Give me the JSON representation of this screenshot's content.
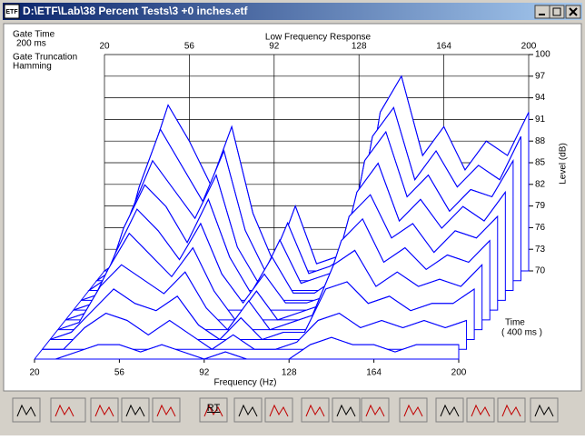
{
  "window": {
    "icon": "ETF",
    "title": "D:\\ETF\\Lab\\38 Percent Tests\\3 +0 inches.etf"
  },
  "toolbar": {
    "labels": [
      "RT"
    ]
  },
  "chart_data": {
    "type": "waterfall",
    "title": "Low Frequency Response",
    "x_label": "Frequency (Hz)",
    "y_label": "Level (dB)",
    "depth_label": "Time",
    "depth_range": "( 400 ms )",
    "annotations": [
      "Gate Time",
      "200 ms",
      "Gate Truncation",
      "Hamming"
    ],
    "color": "#0000ff",
    "grid": true,
    "xlim": [
      20,
      200
    ],
    "xticks": [
      20,
      56,
      92,
      128,
      164,
      200
    ],
    "ylim": [
      70,
      100
    ],
    "yticks": [
      70,
      73,
      76,
      79,
      82,
      85,
      88,
      91,
      94,
      97,
      100
    ],
    "x": [
      20,
      29,
      38,
      47,
      56,
      65,
      74,
      83,
      92,
      101,
      110,
      119,
      128,
      137,
      146,
      155,
      164,
      173,
      182,
      191,
      200
    ],
    "series": [
      {
        "values": [
          70,
          72,
          84,
          93,
          88,
          82,
          90,
          78,
          71,
          79,
          71,
          72,
          74,
          92,
          97,
          86,
          90,
          84,
          88,
          86,
          92
        ]
      },
      {
        "values": [
          70,
          72,
          83,
          91,
          86,
          81,
          88,
          77,
          71,
          78,
          71,
          72,
          74,
          90,
          94,
          84,
          88,
          83,
          86,
          84,
          90
        ]
      },
      {
        "values": [
          70,
          72,
          81,
          88,
          84,
          80,
          86,
          76,
          71,
          77,
          71,
          72,
          73,
          88,
          92,
          83,
          86,
          81,
          84,
          83,
          88
        ]
      },
      {
        "values": [
          70,
          71,
          80,
          86,
          83,
          78,
          84,
          76,
          71,
          76,
          71,
          71,
          73,
          85,
          89,
          81,
          84,
          80,
          83,
          81,
          85
        ]
      },
      {
        "values": [
          70,
          71,
          78,
          84,
          81,
          77,
          82,
          75,
          71,
          75,
          71,
          71,
          72,
          83,
          86,
          80,
          82,
          78,
          81,
          80,
          83
        ]
      },
      {
        "values": [
          70,
          71,
          77,
          82,
          79,
          76,
          80,
          74,
          70,
          74,
          70,
          71,
          72,
          81,
          84,
          78,
          80,
          77,
          79,
          78,
          81
        ]
      },
      {
        "values": [
          70,
          71,
          76,
          79,
          77,
          75,
          78,
          73,
          70,
          74,
          70,
          71,
          72,
          79,
          81,
          76,
          78,
          76,
          77,
          76,
          79
        ]
      },
      {
        "values": [
          70,
          71,
          74,
          77,
          75,
          74,
          76,
          72,
          70,
          73,
          70,
          71,
          71,
          77,
          78,
          75,
          76,
          74,
          75,
          75,
          77
        ]
      },
      {
        "values": [
          70,
          70,
          73,
          75,
          74,
          72,
          74,
          72,
          70,
          72,
          70,
          70,
          71,
          74,
          75,
          73,
          74,
          73,
          74,
          73,
          74
        ]
      },
      {
        "values": [
          70,
          70,
          71,
          72,
          72,
          71,
          72,
          71,
          70,
          71,
          70,
          70,
          70,
          72,
          73,
          72,
          72,
          71,
          72,
          72,
          72
        ]
      }
    ]
  }
}
